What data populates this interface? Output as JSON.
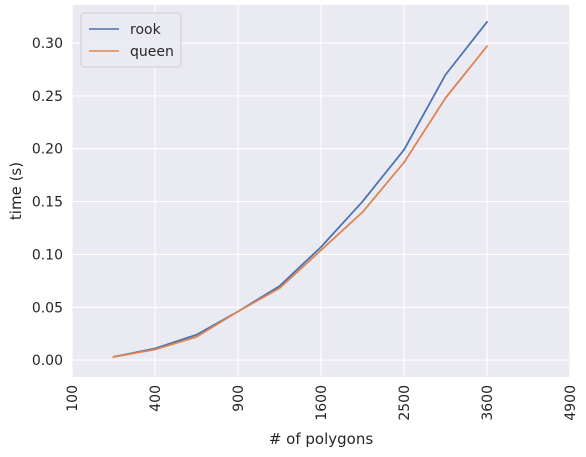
{
  "chart_data": {
    "type": "line",
    "title": "",
    "xlabel": "# of polygons",
    "ylabel": "time (s)",
    "xscale": "sqrt",
    "xlim": [
      100,
      4900
    ],
    "ylim": [
      -0.016,
      0.336
    ],
    "x_ticks": [
      100,
      400,
      900,
      1600,
      2500,
      3600,
      4900
    ],
    "x_tick_labels": [
      "100",
      "400",
      "900",
      "1600",
      "2500",
      "3600",
      "4900"
    ],
    "y_ticks": [
      0.0,
      0.05,
      0.1,
      0.15,
      0.2,
      0.25,
      0.3
    ],
    "y_tick_labels": [
      "0.00",
      "0.05",
      "0.10",
      "0.15",
      "0.20",
      "0.25",
      "0.30"
    ],
    "x_tick_label_rotation": "vertical",
    "grid": true,
    "style": "seaborn-darkgrid",
    "legend": "top-left",
    "x": [
      225,
      400,
      625,
      900,
      1225,
      1600,
      2025,
      2500,
      3025,
      3600
    ],
    "series": [
      {
        "name": "rook",
        "color": "#4c72b0",
        "values": [
          0.003,
          0.011,
          0.024,
          0.046,
          0.07,
          0.107,
          0.15,
          0.199,
          0.27,
          0.32
        ]
      },
      {
        "name": "queen",
        "color": "#dd8452",
        "values": [
          0.003,
          0.01,
          0.022,
          0.046,
          0.068,
          0.104,
          0.14,
          0.187,
          0.248,
          0.297
        ]
      }
    ]
  }
}
